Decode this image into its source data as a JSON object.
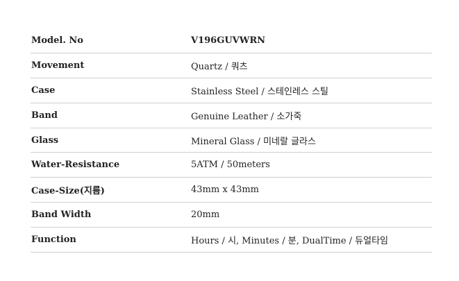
{
  "specs": {
    "rows": [
      {
        "label": "Model. No",
        "value": "V196GUVWRN"
      },
      {
        "label": "Movement",
        "value": "Quartz / 쿼츠"
      },
      {
        "label": "Case",
        "value": "Stainless Steel / 스테인레스 스틸"
      },
      {
        "label": "Band",
        "value": "Genuine Leather / 소가죽"
      },
      {
        "label": "Glass",
        "value": "Mineral Glass / 미네랄 글라스"
      },
      {
        "label": "Water-Resistance",
        "value": "5ATM / 50meters"
      },
      {
        "label": "Case-Size(지름)",
        "value": "43mm x 43mm"
      },
      {
        "label": "Band Width",
        "value": "20mm"
      },
      {
        "label": "Function",
        "value": "Hours / 시, Minutes / 분, DualTime / 듀얼타임"
      }
    ]
  }
}
